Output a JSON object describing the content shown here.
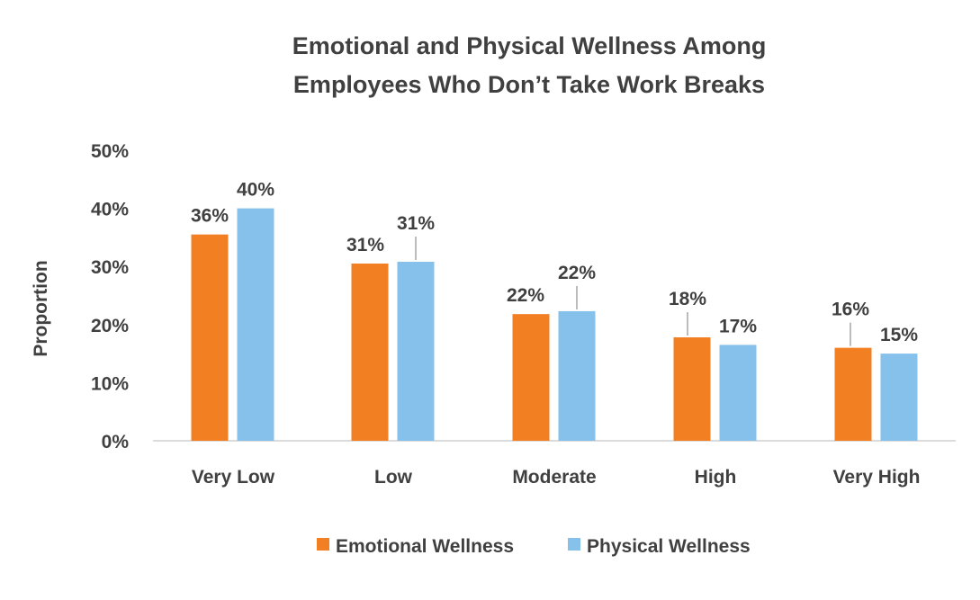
{
  "chart_data": {
    "type": "bar",
    "title": [
      "Emotional and Physical Wellness Among",
      "Employees Who Don’t Take Work Breaks"
    ],
    "xlabel": "",
    "ylabel": "Proportion",
    "ylim": [
      0,
      50
    ],
    "yticks": [
      "0%",
      "10%",
      "20%",
      "30%",
      "40%",
      "50%"
    ],
    "grid": false,
    "legend_position": "bottom",
    "categories": [
      "Very Low",
      "Low",
      "Moderate",
      "High",
      "Very High"
    ],
    "series": [
      {
        "name": "Emotional Wellness",
        "color": "#F27F22",
        "values": [
          35.5,
          30.5,
          21.8,
          17.8,
          16.0
        ],
        "labels": [
          "36%",
          "31%",
          "22%",
          "18%",
          "16%"
        ]
      },
      {
        "name": "Physical Wellness",
        "color": "#85C1EA",
        "values": [
          40.0,
          30.8,
          22.3,
          16.5,
          15.0
        ],
        "labels": [
          "40%",
          "31%",
          "22%",
          "17%",
          "15%"
        ]
      }
    ]
  }
}
